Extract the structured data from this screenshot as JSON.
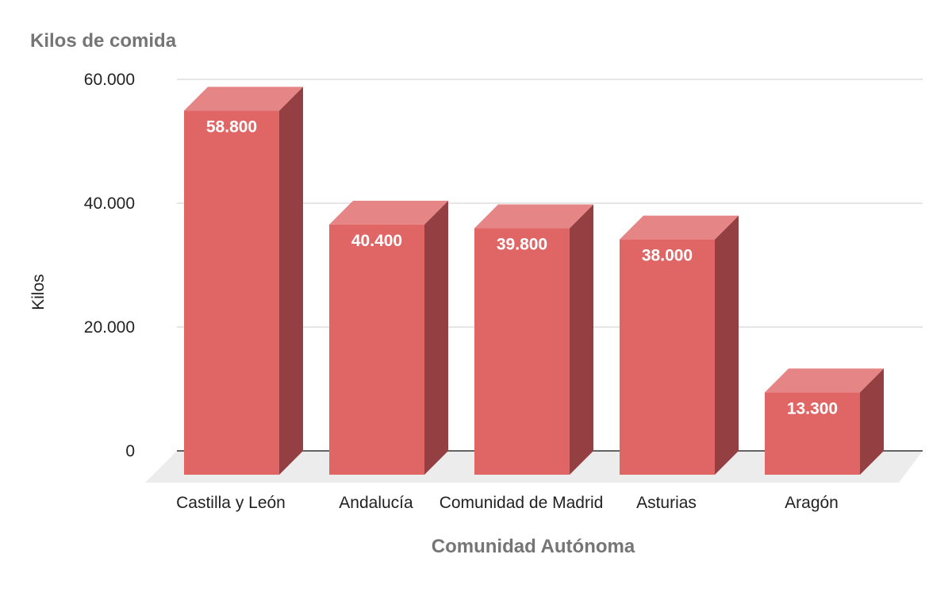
{
  "chart_data": {
    "type": "bar",
    "title": "Kilos de comida",
    "xlabel": "Comunidad Autónoma",
    "ylabel": "Kilos",
    "categories": [
      "Castilla y León",
      "Andalucía",
      "Comunidad de Madrid",
      "Asturias",
      "Aragón"
    ],
    "values": [
      58800,
      40400,
      39800,
      38000,
      13300
    ],
    "value_labels": [
      "58.800",
      "40.400",
      "39.800",
      "38.000",
      "13.300"
    ],
    "yticks": [
      0,
      20000,
      40000,
      60000
    ],
    "ytick_labels": [
      "0",
      "20.000",
      "40.000",
      "60.000"
    ],
    "ylim": [
      0,
      60000
    ],
    "grid": true,
    "legend": "none",
    "colors": {
      "bar_front": "#e06666",
      "bar_top": "#e68585",
      "bar_side": "#943f42",
      "floor": "#ececec",
      "grid": "#cccccc",
      "baseline": "#333333"
    }
  }
}
